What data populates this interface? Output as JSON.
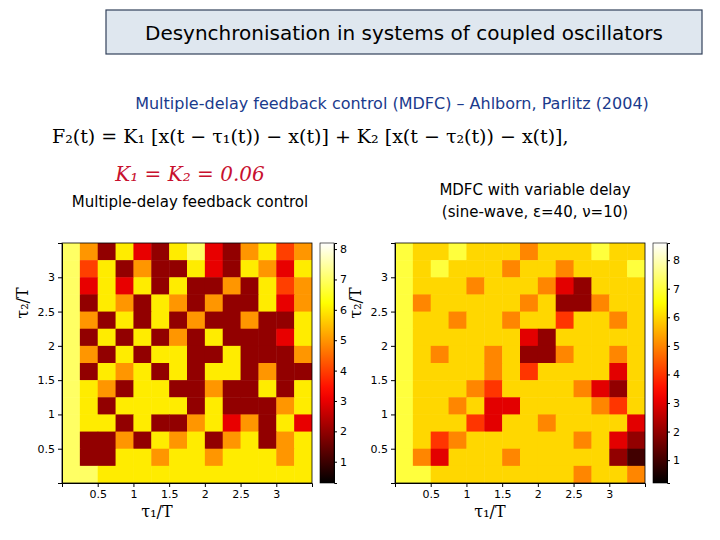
{
  "header": {
    "title": "Desynchronisation in systems of coupled oscillators",
    "subtitle": "Multiple-delay feedback control (MDFC) – Ahlborn, Parlitz (2004)",
    "formula": "F₂(t) = K₁ [x(t − τ₁(t)) − x(t)] + K₂ [x(t − τ₂(t)) − x(t)],",
    "gains": "K₁ = K₂ = 0.06"
  },
  "chart_data": [
    {
      "type": "heatmap",
      "title": [
        "Multiple-delay feedback control"
      ],
      "x_label": "τ₁/T",
      "y_label": "τ₂/T",
      "color": "hot",
      "xlim": [
        0,
        3.5
      ],
      "ylim": [
        0,
        3.5
      ],
      "xticks": [
        0.5,
        1,
        1.5,
        2,
        2.5,
        3
      ],
      "yticks": [
        0.5,
        1,
        1.5,
        2,
        2.5,
        3
      ],
      "x": [
        0.125,
        0.375,
        0.625,
        0.875,
        1.125,
        1.375,
        1.625,
        1.875,
        2.125,
        2.375,
        2.625,
        2.875,
        3.125,
        3.375
      ],
      "y": [
        3.375,
        3.125,
        2.875,
        2.625,
        2.375,
        2.125,
        1.875,
        1.625,
        1.375,
        1.125,
        0.875,
        0.625,
        0.375,
        0.125
      ],
      "z": [
        [
          7,
          5,
          2,
          6,
          3,
          2,
          6,
          7,
          3,
          2,
          5,
          6,
          4,
          5
        ],
        [
          7,
          4,
          6,
          2,
          5,
          2,
          2,
          6,
          3,
          2,
          6,
          5,
          3,
          6
        ],
        [
          7,
          3,
          6,
          3,
          6,
          2,
          6,
          2,
          2,
          5,
          2,
          6,
          4,
          5
        ],
        [
          7,
          2,
          6,
          5,
          2,
          6,
          5,
          2,
          5,
          2,
          2,
          6,
          3,
          5
        ],
        [
          7,
          5,
          2,
          6,
          2,
          6,
          2,
          5,
          2,
          2,
          5,
          2,
          2,
          6
        ],
        [
          7,
          2,
          6,
          2,
          6,
          2,
          5,
          2,
          6,
          2,
          2,
          2,
          3,
          6
        ],
        [
          7,
          5,
          2,
          6,
          2,
          6,
          6,
          2,
          2,
          6,
          2,
          2,
          2,
          5
        ],
        [
          7,
          2,
          6,
          5,
          6,
          2,
          6,
          2,
          6,
          6,
          2,
          5,
          2,
          2
        ],
        [
          7,
          6,
          5,
          2,
          6,
          6,
          2,
          2,
          5,
          2,
          2,
          6,
          2,
          6
        ],
        [
          7,
          6,
          2,
          6,
          6,
          6,
          6,
          2,
          6,
          2,
          2,
          2,
          5,
          6
        ],
        [
          7,
          6,
          6,
          2,
          6,
          2,
          2,
          5,
          6,
          3,
          5,
          2,
          6,
          3
        ],
        [
          7,
          2,
          2,
          5,
          2,
          6,
          5,
          6,
          2,
          5,
          6,
          2,
          5,
          6
        ],
        [
          7,
          2,
          2,
          6,
          6,
          5,
          6,
          6,
          5,
          6,
          6,
          6,
          5,
          6
        ],
        [
          7,
          7,
          6,
          6,
          6,
          6,
          6,
          6,
          6,
          6,
          6,
          6,
          6,
          6
        ]
      ],
      "colorbar": {
        "range": [
          0.3,
          8.2
        ],
        "ticks": [
          1,
          2,
          3,
          4,
          5,
          6,
          7,
          8
        ]
      }
    },
    {
      "type": "heatmap",
      "title": [
        "MDFC with variable delay",
        "(sine-wave, ε=40, ν=10)"
      ],
      "x_label": "τ₁/T",
      "y_label": "τ₂/T",
      "color": "hot",
      "xlim": [
        0,
        3.5
      ],
      "ylim": [
        0,
        3.5
      ],
      "xticks": [
        0.5,
        1,
        1.5,
        2,
        2.5,
        3
      ],
      "yticks": [
        0.5,
        1,
        1.5,
        2,
        2.5,
        3
      ],
      "x": [
        0.125,
        0.375,
        0.625,
        0.875,
        1.125,
        1.375,
        1.625,
        1.875,
        2.125,
        2.375,
        2.625,
        2.875,
        3.125,
        3.375
      ],
      "y": [
        3.375,
        3.125,
        2.875,
        2.625,
        2.375,
        2.125,
        1.875,
        1.625,
        1.375,
        1.125,
        0.875,
        0.625,
        0.375,
        0.125
      ],
      "z": [
        [
          7,
          6,
          6,
          7,
          6,
          6,
          6,
          5,
          6,
          6,
          6,
          7,
          6,
          6
        ],
        [
          7,
          6,
          7,
          6,
          6,
          6,
          5,
          6,
          6,
          5,
          6,
          6,
          6,
          7
        ],
        [
          7,
          6,
          6,
          6,
          5,
          6,
          6,
          6,
          5,
          3,
          2,
          6,
          6,
          6
        ],
        [
          7,
          5,
          6,
          6,
          6,
          6,
          6,
          5,
          6,
          2,
          2,
          5,
          6,
          6
        ],
        [
          7,
          6,
          6,
          5,
          6,
          6,
          5,
          6,
          6,
          4,
          6,
          6,
          5,
          6
        ],
        [
          7,
          6,
          6,
          6,
          6,
          6,
          6,
          3,
          2,
          6,
          6,
          6,
          6,
          6
        ],
        [
          7,
          6,
          5,
          6,
          6,
          5,
          6,
          2,
          2,
          5,
          6,
          6,
          5,
          6
        ],
        [
          7,
          6,
          6,
          6,
          6,
          5,
          6,
          4,
          6,
          6,
          6,
          6,
          3,
          6
        ],
        [
          7,
          6,
          6,
          6,
          5,
          4,
          6,
          6,
          6,
          6,
          5,
          3,
          2,
          6
        ],
        [
          7,
          6,
          6,
          5,
          6,
          3,
          3,
          6,
          6,
          6,
          6,
          5,
          4,
          6
        ],
        [
          7,
          6,
          6,
          6,
          4,
          3,
          6,
          6,
          5,
          6,
          6,
          6,
          6,
          3
        ],
        [
          7,
          6,
          4,
          5,
          6,
          6,
          6,
          6,
          6,
          6,
          5,
          6,
          3,
          2
        ],
        [
          7,
          5,
          3,
          6,
          6,
          6,
          5,
          6,
          6,
          6,
          6,
          6,
          2,
          1
        ],
        [
          7,
          7,
          6,
          6,
          6,
          6,
          6,
          6,
          6,
          6,
          5,
          6,
          6,
          5
        ]
      ],
      "colorbar": {
        "range": [
          0.2,
          8.6
        ],
        "ticks": [
          1,
          2,
          3,
          4,
          5,
          6,
          7,
          8
        ]
      }
    }
  ]
}
